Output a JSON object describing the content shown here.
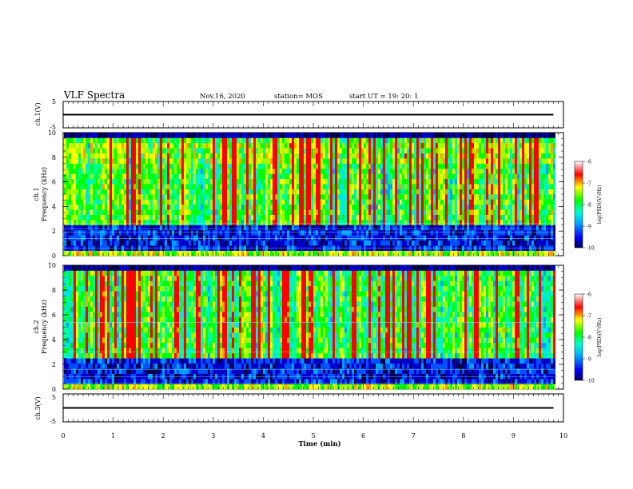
{
  "header": {
    "title": "VLF Spectra",
    "date": "Nov.16, 2020",
    "station": "station= MOS",
    "start_time": "start  UT =   19: 20: 1"
  },
  "chart_data": [
    {
      "type": "line",
      "ylabel": "ch.1(V)",
      "ylim": [
        -5,
        5
      ],
      "yticks": [
        "5",
        "-5"
      ],
      "x": [
        0,
        9.8
      ],
      "values": [
        0,
        0
      ],
      "xlim": [
        0,
        10
      ]
    },
    {
      "type": "heatmap",
      "ylabel": "ch.1\nFrequency (kHz)",
      "ylabel_lines": [
        "ch.1",
        "Frequency (kHz)"
      ],
      "ylim": [
        0,
        10
      ],
      "yticks": [
        "0",
        "2",
        "4",
        "6",
        "8",
        "10"
      ],
      "xlim": [
        0,
        10
      ],
      "data_end_min": 9.8,
      "colorbar": {
        "label": "log(PSD)(V²/Hz)",
        "range": [
          -10,
          -6
        ],
        "ticks": [
          "-6",
          "-7",
          "-8",
          "-9",
          "-10"
        ]
      }
    },
    {
      "type": "heatmap",
      "ylabel": "ch.2\nFrequency (kHz)",
      "ylabel_lines": [
        "ch.2",
        "Frequency (kHz)"
      ],
      "ylim": [
        0,
        10
      ],
      "yticks": [
        "0",
        "2",
        "4",
        "6",
        "8",
        "10"
      ],
      "xlim": [
        0,
        10
      ],
      "data_end_min": 9.8,
      "colorbar": {
        "label": "log(PSD)(V²/Hz)",
        "range": [
          -10,
          -6
        ],
        "ticks": [
          "-6",
          "-7",
          "-8",
          "-9",
          "-10"
        ]
      }
    },
    {
      "type": "line",
      "ylabel": "ch.3(V)",
      "ylim": [
        -5,
        5
      ],
      "yticks": [
        "5",
        "-5"
      ],
      "x": [
        0,
        9.8
      ],
      "values": [
        0,
        0
      ],
      "xlim": [
        0,
        10
      ]
    }
  ],
  "xaxis": {
    "label": "Time (min)",
    "ticks": [
      "0",
      "1",
      "2",
      "3",
      "4",
      "5",
      "6",
      "7",
      "8",
      "9",
      "10"
    ]
  }
}
